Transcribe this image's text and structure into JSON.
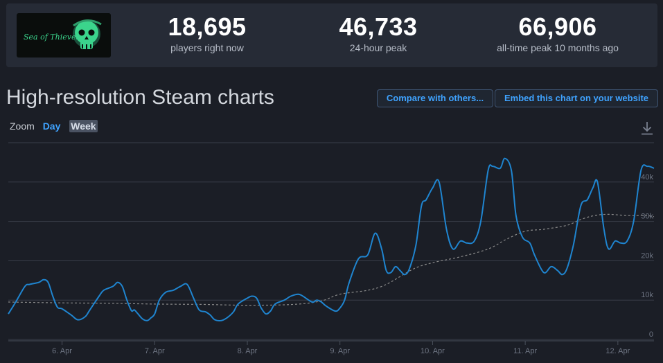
{
  "stats": [
    {
      "value": "18,695",
      "label": "players right now"
    },
    {
      "value": "46,733",
      "label": "24-hour peak"
    },
    {
      "value": "66,906",
      "label": "all-time peak 10 months ago"
    }
  ],
  "game": {
    "logo_text": "Sea of Thieves",
    "accent": "#3bd48c"
  },
  "heading": "High-resolution Steam charts",
  "buttons": {
    "compare": "Compare with others...",
    "embed": "Embed this chart on your website"
  },
  "zoom": {
    "label": "Zoom",
    "day": "Day",
    "week": "Week",
    "selected": "Week"
  },
  "colors": {
    "line": "#1f85d0",
    "avg": "#8a8a8a",
    "grid": "#3a3f4a",
    "accent": "#3fa3ff"
  },
  "chart_data": {
    "type": "line",
    "x_unit": "days (April)",
    "xlim": [
      5.42,
      12.39
    ],
    "ylim": [
      0,
      50000
    ],
    "y_ticks": [
      0,
      10000,
      20000,
      30000,
      40000
    ],
    "y_tick_labels": [
      "0",
      "10k",
      "20k",
      "30k",
      "40k"
    ],
    "x_ticks": [
      6,
      7,
      8,
      9,
      10,
      11,
      12
    ],
    "x_tick_labels": [
      "6. Apr",
      "7. Apr",
      "8. Apr",
      "9. Apr",
      "10. Apr",
      "11. Apr",
      "12. Apr"
    ],
    "grid": true,
    "series": [
      {
        "style": "solid",
        "x": [
          5.42,
          5.5,
          5.6,
          5.65,
          5.75,
          5.8,
          5.85,
          5.9,
          5.95,
          6.0,
          6.1,
          6.17,
          6.25,
          6.3,
          6.4,
          6.45,
          6.55,
          6.6,
          6.65,
          6.7,
          6.75,
          6.78,
          6.82,
          6.87,
          6.92,
          6.96,
          7.0,
          7.05,
          7.12,
          7.2,
          7.28,
          7.35,
          7.42,
          7.48,
          7.55,
          7.6,
          7.65,
          7.72,
          7.78,
          7.85,
          7.9,
          8.0,
          8.05,
          8.1,
          8.15,
          8.2,
          8.25,
          8.3,
          8.4,
          8.47,
          8.55,
          8.6,
          8.7,
          8.75,
          8.8,
          8.85,
          8.95,
          9.0,
          9.05,
          9.1,
          9.2,
          9.3,
          9.38,
          9.45,
          9.5,
          9.55,
          9.6,
          9.65,
          9.7,
          9.75,
          9.82,
          9.88,
          9.93,
          10.0,
          10.07,
          10.15,
          10.22,
          10.3,
          10.37,
          10.45,
          10.52,
          10.6,
          10.65,
          10.73,
          10.78,
          10.85,
          10.9,
          10.97,
          11.05,
          11.1,
          11.2,
          11.28,
          11.35,
          11.4,
          11.45,
          11.52,
          11.6,
          11.67,
          11.73,
          11.78,
          11.85,
          11.9,
          11.97,
          12.03,
          12.1,
          12.17,
          12.25,
          12.32,
          12.39
        ],
        "y": [
          6500,
          9500,
          13500,
          14000,
          14500,
          15200,
          14500,
          11000,
          8200,
          7800,
          6200,
          5000,
          5800,
          7500,
          11000,
          12500,
          13500,
          14500,
          13500,
          10000,
          7300,
          7500,
          6500,
          5200,
          4800,
          5500,
          6500,
          10000,
          12000,
          12500,
          13500,
          14000,
          10500,
          7500,
          7000,
          6200,
          5000,
          4800,
          5500,
          7000,
          9000,
          10500,
          11000,
          10500,
          8000,
          6500,
          7200,
          9000,
          10000,
          11000,
          11500,
          11000,
          9500,
          10000,
          9500,
          8500,
          7200,
          8000,
          10000,
          14500,
          20500,
          21500,
          27000,
          23000,
          17500,
          17000,
          18500,
          17500,
          16500,
          18000,
          24000,
          34000,
          35500,
          38500,
          40000,
          28000,
          23000,
          25000,
          24500,
          25000,
          30000,
          43000,
          44000,
          43500,
          46000,
          43000,
          31500,
          26000,
          24500,
          21500,
          17000,
          18500,
          17500,
          16500,
          18000,
          24000,
          34000,
          35500,
          38500,
          40000,
          28000,
          23000,
          25000,
          24500,
          25000,
          30000,
          43000,
          44000,
          43500
        ]
      },
      {
        "style": "dashed",
        "x": [
          5.42,
          6.0,
          6.5,
          7.0,
          7.5,
          8.0,
          8.5,
          8.8,
          9.0,
          9.3,
          9.5,
          9.8,
          10.0,
          10.3,
          10.6,
          10.8,
          11.0,
          11.2,
          11.45,
          11.6,
          11.75,
          11.9,
          12.1,
          12.3,
          12.39
        ],
        "y": [
          9500,
          9300,
          9200,
          9000,
          8900,
          8700,
          8900,
          9800,
          11500,
          12500,
          14000,
          18000,
          19500,
          21000,
          23000,
          25500,
          27500,
          28000,
          29000,
          30500,
          31500,
          31800,
          31500,
          31500,
          31200
        ]
      }
    ]
  }
}
